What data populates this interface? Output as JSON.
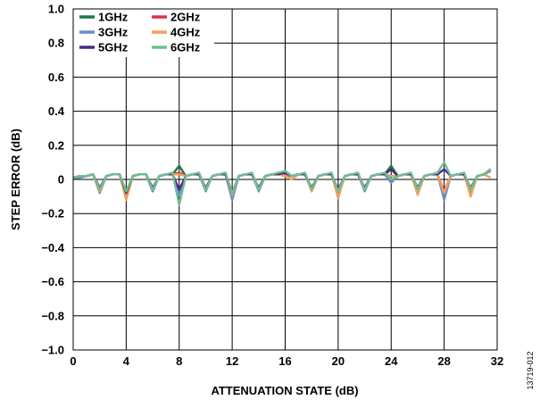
{
  "chart_data": {
    "type": "line",
    "title": "",
    "xlabel": "ATTENUATION STATE (dB)",
    "ylabel": "STEP ERROR (dB)",
    "xlim": [
      0,
      32
    ],
    "ylim": [
      -1.0,
      1.0
    ],
    "x_ticks": [
      0,
      4,
      8,
      12,
      16,
      20,
      24,
      28,
      32
    ],
    "y_ticks": [
      1.0,
      0.8,
      0.6,
      0.4,
      0.2,
      0,
      -0.2,
      -0.4,
      -0.6,
      -0.8,
      -1.0
    ],
    "x_tick_labels": [
      "0",
      "4",
      "8",
      "12",
      "16",
      "20",
      "24",
      "28",
      "32"
    ],
    "y_tick_labels": [
      "1.0",
      "0.8",
      "0.6",
      "0.4",
      "0.2",
      "0",
      "−0.2",
      "−0.4",
      "−0.6",
      "−0.8",
      "−1.0"
    ],
    "grid": true,
    "legend_position": "top-left",
    "figure_id": "13719-012",
    "x": [
      0,
      0.5,
      1,
      1.5,
      2,
      2.5,
      3,
      3.5,
      4,
      4.5,
      5,
      5.5,
      6,
      6.5,
      7,
      7.5,
      8,
      8.5,
      9,
      9.5,
      10,
      10.5,
      11,
      11.5,
      12,
      12.5,
      13,
      13.5,
      14,
      14.5,
      15,
      15.5,
      16,
      16.5,
      17,
      17.5,
      18,
      18.5,
      19,
      19.5,
      20,
      20.5,
      21,
      21.5,
      22,
      22.5,
      23,
      23.5,
      24,
      24.5,
      25,
      25.5,
      26,
      26.5,
      27,
      27.5,
      28,
      28.5,
      29,
      29.5,
      30,
      30.5,
      31,
      31.5
    ],
    "series": [
      {
        "name": "1GHz",
        "color": "#1a7a45",
        "values": [
          0.01,
          0.02,
          0.02,
          0.03,
          -0.07,
          0.02,
          0.03,
          0.03,
          -0.08,
          0.02,
          0.03,
          0.03,
          -0.07,
          0.02,
          0.03,
          0.03,
          0.08,
          0.02,
          0.03,
          0.03,
          -0.06,
          0.02,
          0.03,
          0.03,
          -0.1,
          0.02,
          0.03,
          0.03,
          -0.06,
          0.02,
          0.03,
          0.03,
          0.05,
          0.02,
          0.03,
          0.03,
          -0.06,
          0.02,
          0.03,
          0.03,
          -0.07,
          0.02,
          0.03,
          0.03,
          -0.06,
          0.02,
          0.03,
          0.03,
          0.08,
          0.02,
          0.03,
          0.03,
          -0.06,
          0.02,
          0.03,
          0.03,
          -0.09,
          0.02,
          0.03,
          0.03,
          -0.07,
          0.02,
          0.03,
          0.06
        ]
      },
      {
        "name": "2GHz",
        "color": "#e0304a",
        "values": [
          0.01,
          0.02,
          0.02,
          0.03,
          -0.06,
          0.02,
          0.03,
          0.03,
          -0.09,
          0.02,
          0.03,
          0.03,
          -0.06,
          0.02,
          0.03,
          0.03,
          0.04,
          0.02,
          0.03,
          0.03,
          -0.05,
          0.02,
          0.03,
          0.03,
          -0.08,
          0.02,
          0.03,
          0.03,
          -0.05,
          0.02,
          0.03,
          0.03,
          0.03,
          0.02,
          0.03,
          0.03,
          -0.05,
          0.02,
          0.03,
          0.03,
          -0.08,
          0.02,
          0.03,
          0.03,
          -0.05,
          0.02,
          0.03,
          0.03,
          0.06,
          0.02,
          0.03,
          0.03,
          -0.05,
          0.02,
          0.03,
          0.03,
          -0.07,
          0.02,
          0.03,
          0.03,
          -0.06,
          0.02,
          0.03,
          0.05
        ]
      },
      {
        "name": "3GHz",
        "color": "#6a8fc7",
        "values": [
          0.01,
          0.01,
          0.02,
          0.03,
          -0.08,
          0.02,
          0.03,
          0.03,
          -0.1,
          0.02,
          0.03,
          0.03,
          -0.07,
          0.02,
          0.03,
          0.03,
          -0.09,
          0.02,
          0.03,
          0.03,
          -0.07,
          0.02,
          0.03,
          0.03,
          -0.12,
          0.02,
          0.03,
          0.03,
          -0.07,
          0.02,
          0.03,
          0.03,
          0.02,
          0.02,
          0.03,
          0.03,
          -0.07,
          0.02,
          0.03,
          0.03,
          -0.09,
          0.02,
          0.03,
          0.03,
          -0.07,
          0.02,
          0.03,
          0.03,
          -0.02,
          0.02,
          0.03,
          0.03,
          -0.07,
          0.02,
          0.03,
          0.03,
          -0.12,
          0.02,
          0.03,
          0.03,
          -0.08,
          0.02,
          0.03,
          0.05
        ]
      },
      {
        "name": "4GHz",
        "color": "#f5a05a",
        "values": [
          0.01,
          0.02,
          0.02,
          0.03,
          -0.07,
          0.02,
          0.03,
          0.03,
          -0.12,
          0.02,
          0.03,
          0.03,
          -0.06,
          0.02,
          0.03,
          0.03,
          0.03,
          0.02,
          0.03,
          0.03,
          -0.06,
          0.02,
          0.03,
          0.03,
          -0.09,
          0.02,
          0.03,
          0.03,
          -0.06,
          0.02,
          0.03,
          0.03,
          0.02,
          0.0,
          0.03,
          0.03,
          -0.07,
          0.02,
          0.03,
          0.03,
          -0.11,
          0.02,
          0.03,
          0.03,
          -0.06,
          0.02,
          0.03,
          0.03,
          0.02,
          0.02,
          0.03,
          0.03,
          -0.09,
          0.02,
          0.03,
          0.03,
          -0.08,
          0.02,
          0.03,
          0.03,
          -0.1,
          0.02,
          0.03,
          0.01
        ]
      },
      {
        "name": "5GHz",
        "color": "#4b2a8a",
        "values": [
          0.01,
          0.02,
          0.02,
          0.03,
          -0.05,
          0.02,
          0.03,
          0.03,
          -0.08,
          0.02,
          0.03,
          0.03,
          -0.05,
          0.02,
          0.03,
          0.03,
          -0.06,
          0.02,
          0.03,
          0.03,
          -0.05,
          0.02,
          0.03,
          0.03,
          -0.08,
          0.02,
          0.03,
          0.03,
          -0.05,
          0.02,
          0.03,
          0.03,
          0.04,
          0.02,
          0.03,
          0.03,
          -0.05,
          0.02,
          0.03,
          0.03,
          -0.06,
          0.02,
          0.03,
          0.03,
          -0.05,
          0.02,
          0.03,
          0.03,
          0.06,
          0.02,
          0.03,
          0.03,
          -0.05,
          0.02,
          0.03,
          0.03,
          0.06,
          0.02,
          0.03,
          0.03,
          -0.05,
          0.02,
          0.03,
          0.06
        ]
      },
      {
        "name": "6GHz",
        "color": "#6fbf8f",
        "values": [
          0.01,
          0.02,
          0.02,
          0.03,
          -0.06,
          0.02,
          0.03,
          0.03,
          -0.07,
          0.02,
          0.03,
          0.03,
          -0.06,
          0.02,
          0.03,
          0.04,
          -0.15,
          0.02,
          0.03,
          0.04,
          -0.06,
          0.02,
          0.03,
          0.04,
          -0.08,
          0.02,
          0.03,
          0.04,
          -0.06,
          0.02,
          0.03,
          0.04,
          0.05,
          0.02,
          0.03,
          0.04,
          -0.06,
          0.02,
          0.03,
          0.04,
          -0.07,
          0.02,
          0.03,
          0.04,
          -0.06,
          0.02,
          0.03,
          0.04,
          0.0,
          0.02,
          0.03,
          0.04,
          -0.06,
          0.02,
          0.03,
          0.04,
          0.1,
          0.02,
          0.03,
          0.04,
          -0.06,
          0.02,
          0.03,
          0.06
        ]
      }
    ],
    "legend": [
      {
        "label": "1GHz",
        "color": "#1a7a45"
      },
      {
        "label": "2GHz",
        "color": "#e0304a"
      },
      {
        "label": "3GHz",
        "color": "#6a8fc7"
      },
      {
        "label": "4GHz",
        "color": "#f5a05a"
      },
      {
        "label": "5GHz",
        "color": "#4b2a8a"
      },
      {
        "label": "6GHz",
        "color": "#6fbf8f"
      }
    ]
  }
}
